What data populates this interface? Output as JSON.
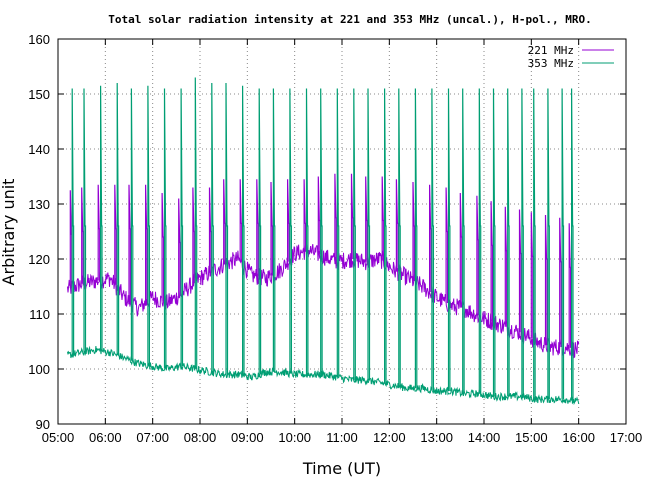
{
  "chart_data": {
    "type": "line",
    "title": "Total solar radiation intensity at 221 and 353 MHz (uncal.), H-pol., MRO.",
    "xlabel": "Time (UT)",
    "ylabel": "Arbitrary unit",
    "x_ticks": [
      "05:00",
      "06:00",
      "07:00",
      "08:00",
      "09:00",
      "10:00",
      "11:00",
      "12:00",
      "13:00",
      "14:00",
      "15:00",
      "16:00",
      "17:00"
    ],
    "y_ticks": [
      90,
      100,
      110,
      120,
      130,
      140,
      150,
      160
    ],
    "xlim_hours": [
      5,
      17
    ],
    "ylim": [
      90,
      160
    ],
    "grid": true,
    "legend_position": "top-right",
    "colors": {
      "221": "#9400d3",
      "353": "#009e73"
    },
    "series": [
      {
        "name": "221 MHz",
        "x": [
          5.2,
          5.5,
          5.8,
          6.1,
          6.4,
          6.7,
          7.0,
          7.3,
          7.6,
          7.9,
          8.2,
          8.5,
          8.8,
          9.1,
          9.4,
          9.7,
          10.0,
          10.3,
          10.6,
          10.9,
          11.2,
          11.5,
          11.8,
          12.1,
          12.4,
          12.7,
          13.0,
          13.3,
          13.6,
          13.9,
          14.2,
          14.5,
          14.8,
          15.1,
          15.4,
          15.7,
          16.0
        ],
        "values": [
          114.5,
          115.5,
          116.0,
          116.5,
          113.0,
          111.0,
          113.0,
          112.0,
          113.5,
          116.0,
          117.5,
          119.0,
          120.0,
          117.0,
          116.5,
          118.0,
          121.0,
          121.5,
          120.5,
          119.5,
          120.0,
          119.5,
          120.0,
          118.0,
          116.5,
          115.0,
          113.0,
          111.5,
          111.0,
          109.5,
          108.5,
          107.5,
          106.5,
          105.0,
          104.0,
          104.0,
          103.5
        ],
        "spike_times": [
          5.26,
          5.5,
          5.85,
          6.2,
          6.5,
          6.85,
          7.2,
          7.55,
          7.85,
          8.2,
          8.5,
          8.85,
          9.2,
          9.5,
          9.85,
          10.2,
          10.5,
          10.85,
          11.2,
          11.5,
          11.85,
          12.15,
          12.5,
          12.85,
          13.2,
          13.5,
          13.85,
          14.15,
          14.45,
          14.75,
          15.0,
          15.3,
          15.6,
          15.8
        ],
        "spike_peaks": [
          132.5,
          133.0,
          133.5,
          133.5,
          133.5,
          133.5,
          132.0,
          131.0,
          133.0,
          133.0,
          134.5,
          134.5,
          134.5,
          134.0,
          134.5,
          134.5,
          135.0,
          135.5,
          135.5,
          135.0,
          135.0,
          134.5,
          134.0,
          133.5,
          133.0,
          132.0,
          131.5,
          130.5,
          129.5,
          129.0,
          128.5,
          128.0,
          127.5,
          126.5
        ]
      },
      {
        "name": "353 MHz",
        "x": [
          5.2,
          5.5,
          5.8,
          6.1,
          6.4,
          6.7,
          7.0,
          7.3,
          7.6,
          7.9,
          8.2,
          8.5,
          8.8,
          9.1,
          9.4,
          9.7,
          10.0,
          10.3,
          10.6,
          10.9,
          11.2,
          11.5,
          11.8,
          12.1,
          12.4,
          12.7,
          13.0,
          13.3,
          13.6,
          13.9,
          14.2,
          14.5,
          14.8,
          15.1,
          15.4,
          15.7,
          16.0
        ],
        "values": [
          102.5,
          103.0,
          103.5,
          103.0,
          102.0,
          101.0,
          100.5,
          100.0,
          100.5,
          100.0,
          99.5,
          99.0,
          99.0,
          98.5,
          99.5,
          99.5,
          99.0,
          99.0,
          99.0,
          98.5,
          98.0,
          98.0,
          97.5,
          97.0,
          96.5,
          96.5,
          96.0,
          96.0,
          95.5,
          95.5,
          95.0,
          95.0,
          95.0,
          94.5,
          94.5,
          94.5,
          94.0
        ],
        "spike_times": [
          5.3,
          5.55,
          5.9,
          6.25,
          6.55,
          6.9,
          7.25,
          7.6,
          7.9,
          8.25,
          8.55,
          8.9,
          9.25,
          9.55,
          9.9,
          10.25,
          10.55,
          10.9,
          11.25,
          11.55,
          11.9,
          12.2,
          12.55,
          12.9,
          13.25,
          13.55,
          13.9,
          14.2,
          14.5,
          14.8,
          15.05,
          15.35,
          15.65,
          15.85
        ],
        "spike_peaks": [
          151.0,
          151.0,
          151.5,
          152.0,
          151.0,
          151.5,
          151.0,
          151.0,
          153.0,
          152.0,
          152.0,
          151.5,
          151.0,
          151.0,
          151.0,
          151.0,
          151.0,
          151.0,
          151.0,
          151.0,
          151.0,
          151.0,
          151.0,
          151.0,
          151.0,
          151.0,
          151.0,
          151.0,
          151.0,
          151.0,
          151.0,
          151.0,
          151.0,
          151.0
        ]
      }
    ]
  }
}
